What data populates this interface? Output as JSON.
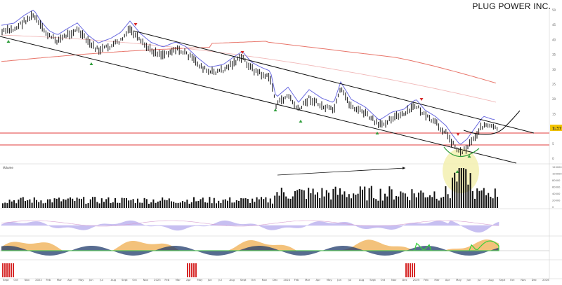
{
  "chart_data": {
    "type": "bar",
    "title": "PLUG POWER INC.",
    "colors": {
      "price_bar": "#111111",
      "ma_blue": "#6a6ae0",
      "ma_red": "#e8756a",
      "ma_pink": "#f1b9b9",
      "channel": "#111111",
      "support": "#e03b3b",
      "arrow_up": "#2e9d3a",
      "arrow_down": "#d62828",
      "osc_orange": "#f0b35a",
      "osc_navy": "#1f3b6b",
      "osc_green": "#37d13c",
      "purple_fill": "#9a8be6",
      "signal_red": "#d62828",
      "highlight": "#f3f0b0"
    },
    "x_ticks": [
      "Sept",
      "Oct",
      "Nov",
      "2022",
      "Feb",
      "Mar",
      "Apr",
      "May",
      "Jun",
      "Jul",
      "Aug",
      "Sept",
      "Oct",
      "Nov",
      "2023",
      "Feb",
      "Mar",
      "Apr",
      "May",
      "Jun",
      "Jul",
      "Aug",
      "Sept",
      "Oct",
      "Nov",
      "Dec",
      "2024",
      "Feb",
      "Mar",
      "Apr",
      "May",
      "Jun",
      "Jul",
      "Aug",
      "Sept",
      "Oct",
      "Nov",
      "Dec",
      "2025",
      "Feb",
      "Mar",
      "Apr",
      "May",
      "Jun",
      "Jul",
      "Aug",
      "Sept",
      "Oct",
      "Nov",
      "Dec",
      "2026"
    ],
    "price_axis": [
      "50",
      "45",
      "40",
      "35",
      "30",
      "25",
      "20",
      "15",
      "10",
      "5",
      "0"
    ],
    "volume_axis": [
      "120000",
      "100000",
      "80000",
      "60000",
      "40000",
      "20000",
      "0"
    ],
    "labels": {
      "current_price": "1.37",
      "volume_label": "Volume"
    },
    "signals": {
      "down_arrows": [
        {
          "date": "Aug 2022"
        },
        {
          "date": "Aug 2023"
        },
        {
          "date": "Nov 2024"
        },
        {
          "date": "Mar 2025"
        }
      ],
      "up_arrows": [
        {
          "date": "Sept 2021"
        },
        {
          "date": "May 2022"
        },
        {
          "date": "Nov 2023"
        },
        {
          "date": "Jan 2024"
        },
        {
          "date": "Sept 2024"
        },
        {
          "date": "Apr 2025"
        },
        {
          "date": "May 2025"
        }
      ]
    }
  }
}
